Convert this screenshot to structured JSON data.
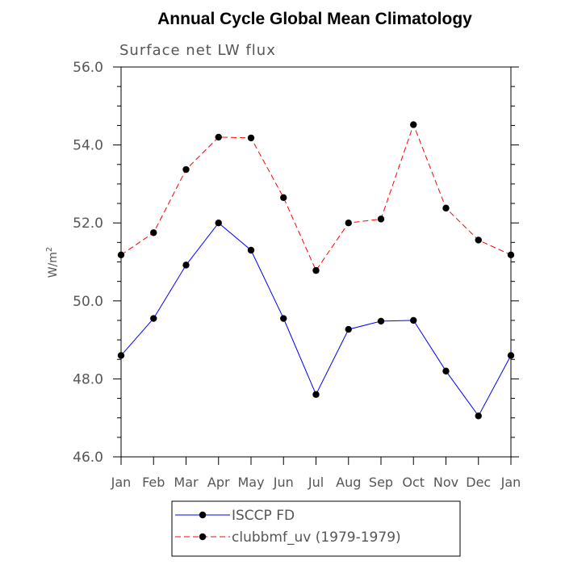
{
  "chart_data": {
    "type": "line",
    "title": "Annual Cycle Global Mean Climatology",
    "subtitle": "Surface net LW flux",
    "ylabel": "W/m",
    "ylabel_superscript": "2",
    "ylim": [
      46.0,
      56.0
    ],
    "yticks": [
      "46.0",
      "48.0",
      "50.0",
      "52.0",
      "54.0",
      "56.0"
    ],
    "ytick_values": [
      46,
      48,
      50,
      52,
      54,
      56
    ],
    "categories": [
      "Jan",
      "Feb",
      "Mar",
      "Apr",
      "May",
      "Jun",
      "Jul",
      "Aug",
      "Sep",
      "Oct",
      "Nov",
      "Dec",
      "Jan"
    ],
    "series": [
      {
        "name": "ISCCP FD",
        "color": "#0000ff",
        "line_style": "solid",
        "values": [
          48.6,
          49.55,
          50.92,
          52.0,
          51.3,
          49.55,
          47.6,
          49.27,
          49.48,
          49.5,
          48.2,
          47.05,
          48.6
        ]
      },
      {
        "name": "clubbmf_uv (1979-1979)",
        "color": "#ff0000",
        "line_style": "dashed",
        "values": [
          51.18,
          51.75,
          53.37,
          54.2,
          54.18,
          52.65,
          50.78,
          52.0,
          52.1,
          54.52,
          52.38,
          51.56,
          51.18
        ]
      }
    ],
    "legend_position": "bottom",
    "grid": false
  }
}
